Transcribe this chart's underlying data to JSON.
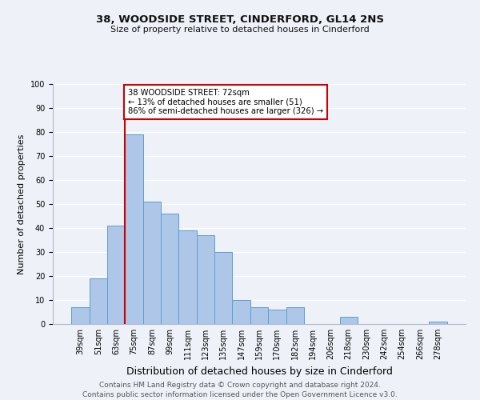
{
  "title": "38, WOODSIDE STREET, CINDERFORD, GL14 2NS",
  "subtitle": "Size of property relative to detached houses in Cinderford",
  "xlabel": "Distribution of detached houses by size in Cinderford",
  "ylabel": "Number of detached properties",
  "bar_labels": [
    "39sqm",
    "51sqm",
    "63sqm",
    "75sqm",
    "87sqm",
    "99sqm",
    "111sqm",
    "123sqm",
    "135sqm",
    "147sqm",
    "159sqm",
    "170sqm",
    "182sqm",
    "194sqm",
    "206sqm",
    "218sqm",
    "230sqm",
    "242sqm",
    "254sqm",
    "266sqm",
    "278sqm"
  ],
  "bar_heights": [
    7,
    19,
    41,
    79,
    51,
    46,
    39,
    37,
    30,
    10,
    7,
    6,
    7,
    0,
    0,
    3,
    0,
    0,
    0,
    0,
    1
  ],
  "bar_color": "#aec6e8",
  "bar_edge_color": "#5a9fd4",
  "vline_x_idx": 3,
  "vline_color": "#cc0000",
  "ylim": [
    0,
    100
  ],
  "annotation_line1": "38 WOODSIDE STREET: 72sqm",
  "annotation_line2": "← 13% of detached houses are smaller (51)",
  "annotation_line3": "86% of semi-detached houses are larger (326) →",
  "annotation_box_color": "#ffffff",
  "annotation_box_edge_color": "#cc0000",
  "footer_line1": "Contains HM Land Registry data © Crown copyright and database right 2024.",
  "footer_line2": "Contains public sector information licensed under the Open Government Licence v3.0.",
  "background_color": "#eef2f8",
  "grid_color": "#ffffff",
  "title_fontsize": 9.5,
  "subtitle_fontsize": 8,
  "ylabel_fontsize": 8,
  "xlabel_fontsize": 9,
  "tick_fontsize": 7,
  "footer_fontsize": 6.5
}
